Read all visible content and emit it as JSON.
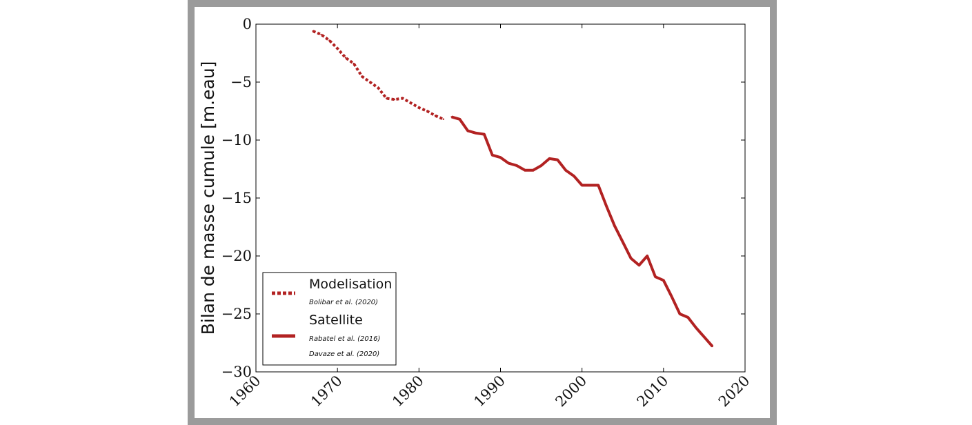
{
  "chart_data": {
    "type": "line",
    "ylabel": "Bilan de masse cumule [m.eau]",
    "xlim": [
      1960,
      2020
    ],
    "ylim": [
      -30,
      0
    ],
    "x_ticks": [
      1960,
      1970,
      1980,
      1990,
      2000,
      2010,
      2020
    ],
    "y_ticks": [
      0,
      -5,
      -10,
      -15,
      -20,
      -25,
      -30
    ],
    "x_tick_labels": [
      "1960",
      "1970",
      "1980",
      "1990",
      "2000",
      "2010",
      "2020"
    ],
    "y_tick_labels": [
      "0",
      "−5",
      "−10",
      "−15",
      "−20",
      "−25",
      "−30"
    ],
    "grid": false,
    "legend_position": "lower-left",
    "series": [
      {
        "name": "Modelisation",
        "references": [
          "Bolibar et al. (2020)"
        ],
        "color": "#b22222",
        "line_style": "dotted",
        "x": [
          1967,
          1968,
          1969,
          1970,
          1971,
          1972,
          1973,
          1974,
          1975,
          1976,
          1977,
          1978,
          1979,
          1980,
          1981,
          1982,
          1983
        ],
        "values": [
          -0.6,
          -0.9,
          -1.4,
          -2.1,
          -2.9,
          -3.4,
          -4.5,
          -5.0,
          -5.5,
          -6.4,
          -6.5,
          -6.4,
          -6.8,
          -7.2,
          -7.5,
          -7.9,
          -8.2
        ]
      },
      {
        "name": "Satellite",
        "references": [
          "Rabatel et al. (2016)",
          "Davaze et al. (2020)"
        ],
        "color": "#b22222",
        "line_style": "solid",
        "x": [
          1984,
          1985,
          1986,
          1987,
          1988,
          1989,
          1990,
          1991,
          1992,
          1993,
          1994,
          1995,
          1996,
          1997,
          1998,
          1999,
          2000,
          2001,
          2002,
          2003,
          2004,
          2005,
          2006,
          2007,
          2008,
          2009,
          2010,
          2011,
          2012,
          2013,
          2014,
          2015,
          2016
        ],
        "values": [
          -8.0,
          -8.2,
          -9.2,
          -9.4,
          -9.5,
          -11.3,
          -11.5,
          -12.0,
          -12.2,
          -12.6,
          -12.6,
          -12.2,
          -11.6,
          -11.7,
          -12.6,
          -13.1,
          -13.9,
          -13.9,
          -13.9,
          -15.7,
          -17.4,
          -18.8,
          -20.2,
          -20.8,
          -20.0,
          -21.8,
          -22.1,
          -23.5,
          -25.0,
          -25.3,
          -26.2,
          -27.0,
          -27.8
        ]
      }
    ]
  }
}
